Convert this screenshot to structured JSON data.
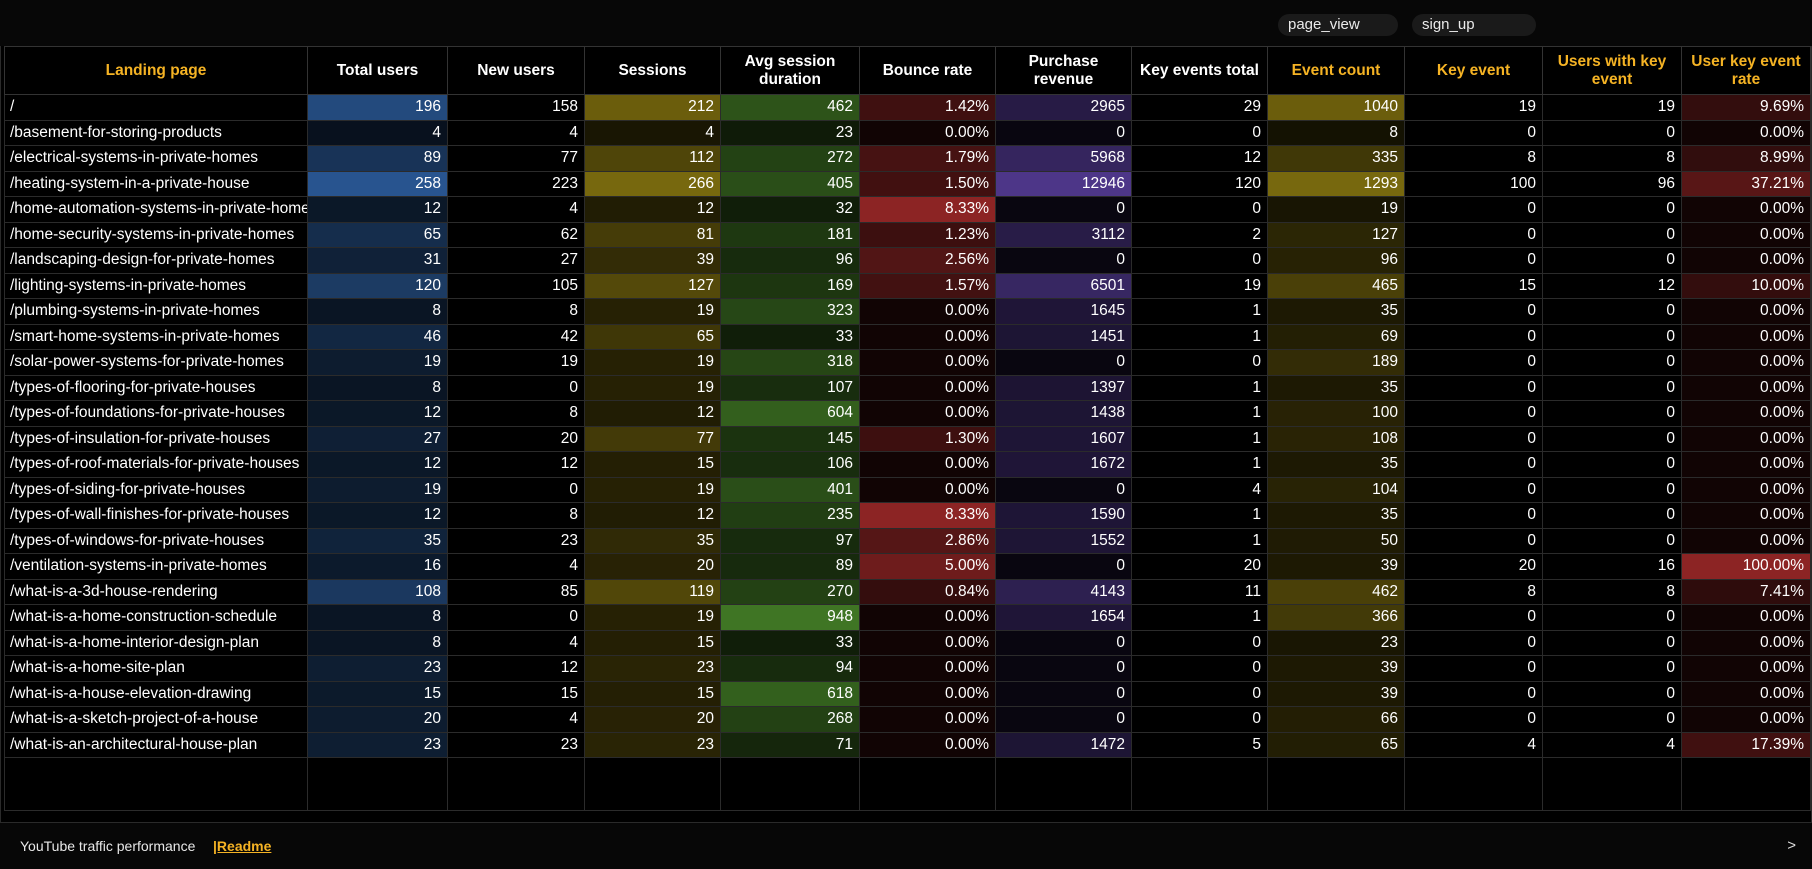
{
  "filters": {
    "chip1": "page_view",
    "chip2": "sign_up"
  },
  "columns": [
    {
      "label": "Landing page",
      "accent": true
    },
    {
      "label": "Total users",
      "accent": false
    },
    {
      "label": "New users",
      "accent": false
    },
    {
      "label": "Sessions",
      "accent": false
    },
    {
      "label": "Avg session duration",
      "accent": false
    },
    {
      "label": "Bounce rate",
      "accent": false
    },
    {
      "label": "Purchase revenue",
      "accent": false
    },
    {
      "label": "Key events total",
      "accent": false
    },
    {
      "label": "Event count",
      "accent": true
    },
    {
      "label": "Key event",
      "accent": true
    },
    {
      "label": "Users with key event",
      "accent": true
    },
    {
      "label": "User key event rate",
      "accent": true
    }
  ],
  "colors": {
    "accent": "#f5b324",
    "heat_blue": "#2f63a8",
    "heat_yellow": "#8c7a10",
    "heat_green": "#4a8a2a",
    "heat_red": "#a52a2a",
    "heat_purple": "#5a3fa0"
  },
  "rows": [
    [
      "/",
      "196",
      "158",
      "212",
      "462",
      "1.42%",
      "2965",
      "29",
      "1040",
      "19",
      "19",
      "9.69%"
    ],
    [
      "/basement-for-storing-products",
      "4",
      "4",
      "4",
      "23",
      "0.00%",
      "0",
      "0",
      "8",
      "0",
      "0",
      "0.00%"
    ],
    [
      "/electrical-systems-in-private-homes",
      "89",
      "77",
      "112",
      "272",
      "1.79%",
      "5968",
      "12",
      "335",
      "8",
      "8",
      "8.99%"
    ],
    [
      "/heating-system-in-a-private-house",
      "258",
      "223",
      "266",
      "405",
      "1.50%",
      "12946",
      "120",
      "1293",
      "100",
      "96",
      "37.21%"
    ],
    [
      "/home-automation-systems-in-private-homes",
      "12",
      "4",
      "12",
      "32",
      "8.33%",
      "0",
      "0",
      "19",
      "0",
      "0",
      "0.00%"
    ],
    [
      "/home-security-systems-in-private-homes",
      "65",
      "62",
      "81",
      "181",
      "1.23%",
      "3112",
      "2",
      "127",
      "0",
      "0",
      "0.00%"
    ],
    [
      "/landscaping-design-for-private-homes",
      "31",
      "27",
      "39",
      "96",
      "2.56%",
      "0",
      "0",
      "96",
      "0",
      "0",
      "0.00%"
    ],
    [
      "/lighting-systems-in-private-homes",
      "120",
      "105",
      "127",
      "169",
      "1.57%",
      "6501",
      "19",
      "465",
      "15",
      "12",
      "10.00%"
    ],
    [
      "/plumbing-systems-in-private-homes",
      "8",
      "8",
      "19",
      "323",
      "0.00%",
      "1645",
      "1",
      "35",
      "0",
      "0",
      "0.00%"
    ],
    [
      "/smart-home-systems-in-private-homes",
      "46",
      "42",
      "65",
      "33",
      "0.00%",
      "1451",
      "1",
      "69",
      "0",
      "0",
      "0.00%"
    ],
    [
      "/solar-power-systems-for-private-homes",
      "19",
      "19",
      "19",
      "318",
      "0.00%",
      "0",
      "0",
      "189",
      "0",
      "0",
      "0.00%"
    ],
    [
      "/types-of-flooring-for-private-houses",
      "8",
      "0",
      "19",
      "107",
      "0.00%",
      "1397",
      "1",
      "35",
      "0",
      "0",
      "0.00%"
    ],
    [
      "/types-of-foundations-for-private-houses",
      "12",
      "8",
      "12",
      "604",
      "0.00%",
      "1438",
      "1",
      "100",
      "0",
      "0",
      "0.00%"
    ],
    [
      "/types-of-insulation-for-private-houses",
      "27",
      "20",
      "77",
      "145",
      "1.30%",
      "1607",
      "1",
      "108",
      "0",
      "0",
      "0.00%"
    ],
    [
      "/types-of-roof-materials-for-private-houses",
      "12",
      "12",
      "15",
      "106",
      "0.00%",
      "1672",
      "1",
      "35",
      "0",
      "0",
      "0.00%"
    ],
    [
      "/types-of-siding-for-private-houses",
      "19",
      "0",
      "19",
      "401",
      "0.00%",
      "0",
      "4",
      "104",
      "0",
      "0",
      "0.00%"
    ],
    [
      "/types-of-wall-finishes-for-private-houses",
      "12",
      "8",
      "12",
      "235",
      "8.33%",
      "1590",
      "1",
      "35",
      "0",
      "0",
      "0.00%"
    ],
    [
      "/types-of-windows-for-private-houses",
      "35",
      "23",
      "35",
      "97",
      "2.86%",
      "1552",
      "1",
      "50",
      "0",
      "0",
      "0.00%"
    ],
    [
      "/ventilation-systems-in-private-homes",
      "16",
      "4",
      "20",
      "89",
      "5.00%",
      "0",
      "20",
      "39",
      "20",
      "16",
      "100.00%"
    ],
    [
      "/what-is-a-3d-house-rendering",
      "108",
      "85",
      "119",
      "270",
      "0.84%",
      "4143",
      "11",
      "462",
      "8",
      "8",
      "7.41%"
    ],
    [
      "/what-is-a-home-construction-schedule",
      "8",
      "0",
      "19",
      "948",
      "0.00%",
      "1654",
      "1",
      "366",
      "0",
      "0",
      "0.00%"
    ],
    [
      "/what-is-a-home-interior-design-plan",
      "8",
      "4",
      "15",
      "33",
      "0.00%",
      "0",
      "0",
      "23",
      "0",
      "0",
      "0.00%"
    ],
    [
      "/what-is-a-home-site-plan",
      "23",
      "12",
      "23",
      "94",
      "0.00%",
      "0",
      "0",
      "39",
      "0",
      "0",
      "0.00%"
    ],
    [
      "/what-is-a-house-elevation-drawing",
      "15",
      "15",
      "15",
      "618",
      "0.00%",
      "0",
      "0",
      "39",
      "0",
      "0",
      "0.00%"
    ],
    [
      "/what-is-a-sketch-project-of-a-house",
      "20",
      "4",
      "20",
      "268",
      "0.00%",
      "0",
      "0",
      "66",
      "0",
      "0",
      "0.00%"
    ],
    [
      "/what-is-an-architectural-house-plan",
      "23",
      "23",
      "23",
      "71",
      "0.00%",
      "1472",
      "5",
      "65",
      "4",
      "4",
      "17.39%"
    ]
  ],
  "footer": {
    "title": "YouTube traffic performance",
    "readme": "|Readme",
    "next": ">"
  }
}
